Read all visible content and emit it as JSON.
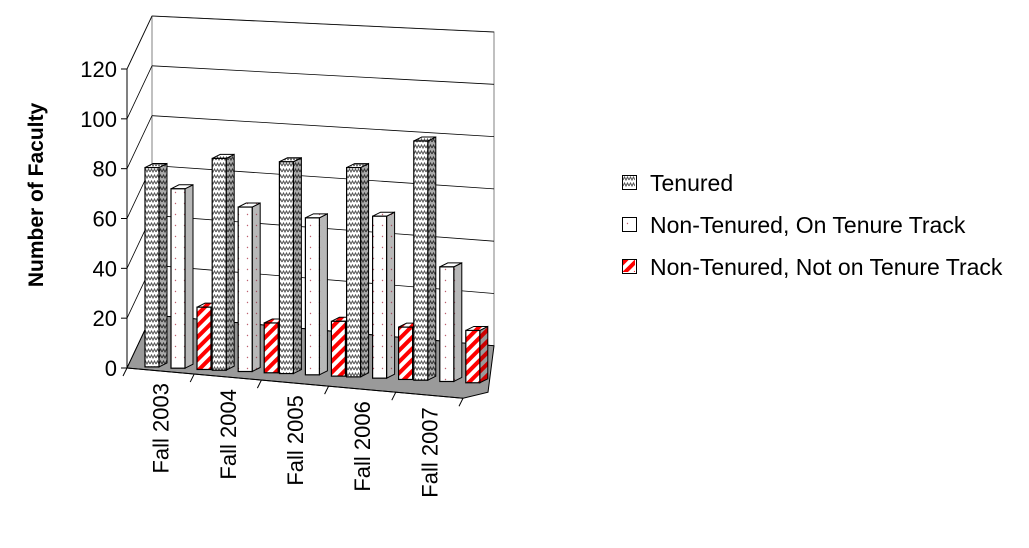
{
  "chart_data": {
    "type": "bar",
    "title": "",
    "xlabel": "",
    "ylabel": "Number of Faculty",
    "ylim": [
      0,
      120
    ],
    "yticks": [
      "0",
      "20",
      "40",
      "60",
      "80",
      "100",
      "120"
    ],
    "categories": [
      "Fall 2003",
      "Fall 2004",
      "Fall 2005",
      "Fall 2006",
      "Fall 2007"
    ],
    "series": [
      {
        "name": "Tenured",
        "values": [
          80,
          85,
          85,
          84,
          96
        ],
        "color": "#ffffff",
        "pattern": "zigzag"
      },
      {
        "name": "Non-Tenured, On Tenure Track",
        "values": [
          72,
          66,
          63,
          65,
          46
        ],
        "color": "#ffffff",
        "pattern": "dots"
      },
      {
        "name": "Non-Tenured, Not on Tenure Track",
        "values": [
          25,
          20,
          22,
          21,
          21
        ],
        "color": "#ff0000",
        "pattern": "diagonal-stripes"
      }
    ],
    "grid": true,
    "legend_position": "right",
    "style": "3d-clustered-column"
  }
}
